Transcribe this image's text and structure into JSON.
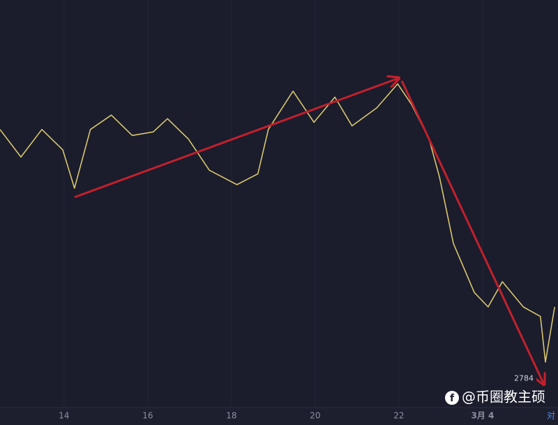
{
  "chart_data": {
    "type": "line",
    "x": [
      12.47,
      12.97,
      13.47,
      13.97,
      14.25,
      14.63,
      15.13,
      15.63,
      16.13,
      16.47,
      16.97,
      17.47,
      18.13,
      18.63,
      18.88,
      19.47,
      19.97,
      20.47,
      20.88,
      21.47,
      21.97,
      22.3,
      22.72,
      22.97,
      23.3,
      23.8,
      24.13,
      24.47,
      24.97,
      25.38,
      25.5,
      25.72
    ],
    "values": [
      2992,
      2969,
      2992,
      2975,
      2943,
      2992,
      3004,
      2987,
      2990,
      3001,
      2984,
      2958,
      2946,
      2955,
      2992,
      3024,
      2998,
      3019,
      2995,
      3010,
      3030,
      3013,
      2984,
      2952,
      2897,
      2856,
      2844,
      2865,
      2844,
      2836,
      2798,
      2844
    ],
    "color": "#d8c76e",
    "xlim": [
      12.47,
      25.8
    ],
    "ylim": [
      2760,
      3100
    ],
    "xticks": [
      14,
      16,
      18,
      20,
      22,
      {
        "value": 24,
        "label": "3月 4"
      }
    ],
    "grid": true,
    "price_label": 2784,
    "corner_label": "对",
    "watermark": "@币圈教主硕"
  }
}
